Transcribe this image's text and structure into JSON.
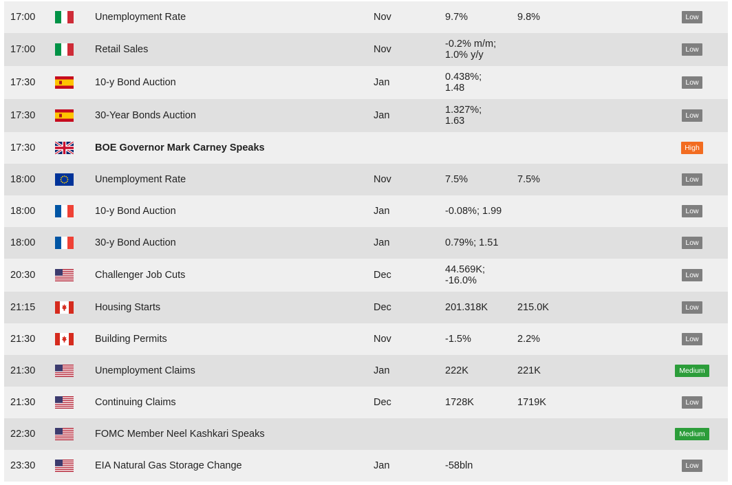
{
  "colors": {
    "low": "#7f7f7f",
    "medium": "#2c9d3a",
    "high": "#f26c21",
    "row_odd": "#efefef",
    "row_even": "#e0e0e0"
  },
  "rows": [
    {
      "time": "17:00",
      "flag": "italy-flag-icon",
      "event": "Unemployment Rate",
      "period": "Nov",
      "actual": [
        "9.7%"
      ],
      "forecast": "9.8%",
      "impact": "Low"
    },
    {
      "time": "17:00",
      "flag": "italy-flag-icon",
      "event": "Retail Sales",
      "period": "Nov",
      "actual": [
        "-0.2% m/m;",
        "1.0% y/y"
      ],
      "forecast": "",
      "impact": "Low"
    },
    {
      "time": "17:30",
      "flag": "spain-flag-icon",
      "event": "10-y Bond Auction",
      "period": "Jan",
      "actual": [
        "0.438%;",
        "1.48"
      ],
      "forecast": "",
      "impact": "Low"
    },
    {
      "time": "17:30",
      "flag": "spain-flag-icon",
      "event": "30-Year Bonds Auction",
      "period": "Jan",
      "actual": [
        "1.327%;",
        "1.63"
      ],
      "forecast": "",
      "impact": "Low"
    },
    {
      "time": "17:30",
      "flag": "uk-flag-icon",
      "event": "BOE Governor Mark Carney Speaks",
      "period": "",
      "actual": [],
      "forecast": "",
      "impact": "High"
    },
    {
      "time": "18:00",
      "flag": "eu-flag-icon",
      "event": "Unemployment Rate",
      "period": "Nov",
      "actual": [
        "7.5%"
      ],
      "forecast": "7.5%",
      "impact": "Low"
    },
    {
      "time": "18:00",
      "flag": "france-flag-icon",
      "event": "10-y Bond Auction",
      "period": "Jan",
      "actual": [
        "-0.08%; 1.99"
      ],
      "forecast": "",
      "impact": "Low"
    },
    {
      "time": "18:00",
      "flag": "france-flag-icon",
      "event": "30-y Bond Auction",
      "period": "Jan",
      "actual": [
        "0.79%; 1.51"
      ],
      "forecast": "",
      "impact": "Low"
    },
    {
      "time": "20:30",
      "flag": "usa-flag-icon",
      "event": "Challenger Job Cuts",
      "period": "Dec",
      "actual": [
        "44.569K;",
        "-16.0%"
      ],
      "forecast": "",
      "impact": "Low"
    },
    {
      "time": "21:15",
      "flag": "canada-flag-icon",
      "event": "Housing Starts",
      "period": "Dec",
      "actual": [
        "201.318K"
      ],
      "forecast": "215.0K",
      "impact": "Low"
    },
    {
      "time": "21:30",
      "flag": "canada-flag-icon",
      "event": "Building Permits",
      "period": "Nov",
      "actual": [
        "-1.5%"
      ],
      "forecast": "2.2%",
      "impact": "Low"
    },
    {
      "time": "21:30",
      "flag": "usa-flag-icon",
      "event": "Unemployment Claims",
      "period": "Jan",
      "actual": [
        "222K"
      ],
      "forecast": "221K",
      "impact": "Medium"
    },
    {
      "time": "21:30",
      "flag": "usa-flag-icon",
      "event": "Continuing Claims",
      "period": "Dec",
      "actual": [
        "1728K"
      ],
      "forecast": "1719K",
      "impact": "Low"
    },
    {
      "time": "22:30",
      "flag": "usa-flag-icon",
      "event": "FOMC Member Neel Kashkari Speaks",
      "period": "",
      "actual": [],
      "forecast": "",
      "impact": "Medium"
    },
    {
      "time": "23:30",
      "flag": "usa-flag-icon",
      "event": "EIA Natural Gas Storage Change",
      "period": "Jan",
      "actual": [
        "-58bln"
      ],
      "forecast": "",
      "impact": "Low"
    }
  ]
}
